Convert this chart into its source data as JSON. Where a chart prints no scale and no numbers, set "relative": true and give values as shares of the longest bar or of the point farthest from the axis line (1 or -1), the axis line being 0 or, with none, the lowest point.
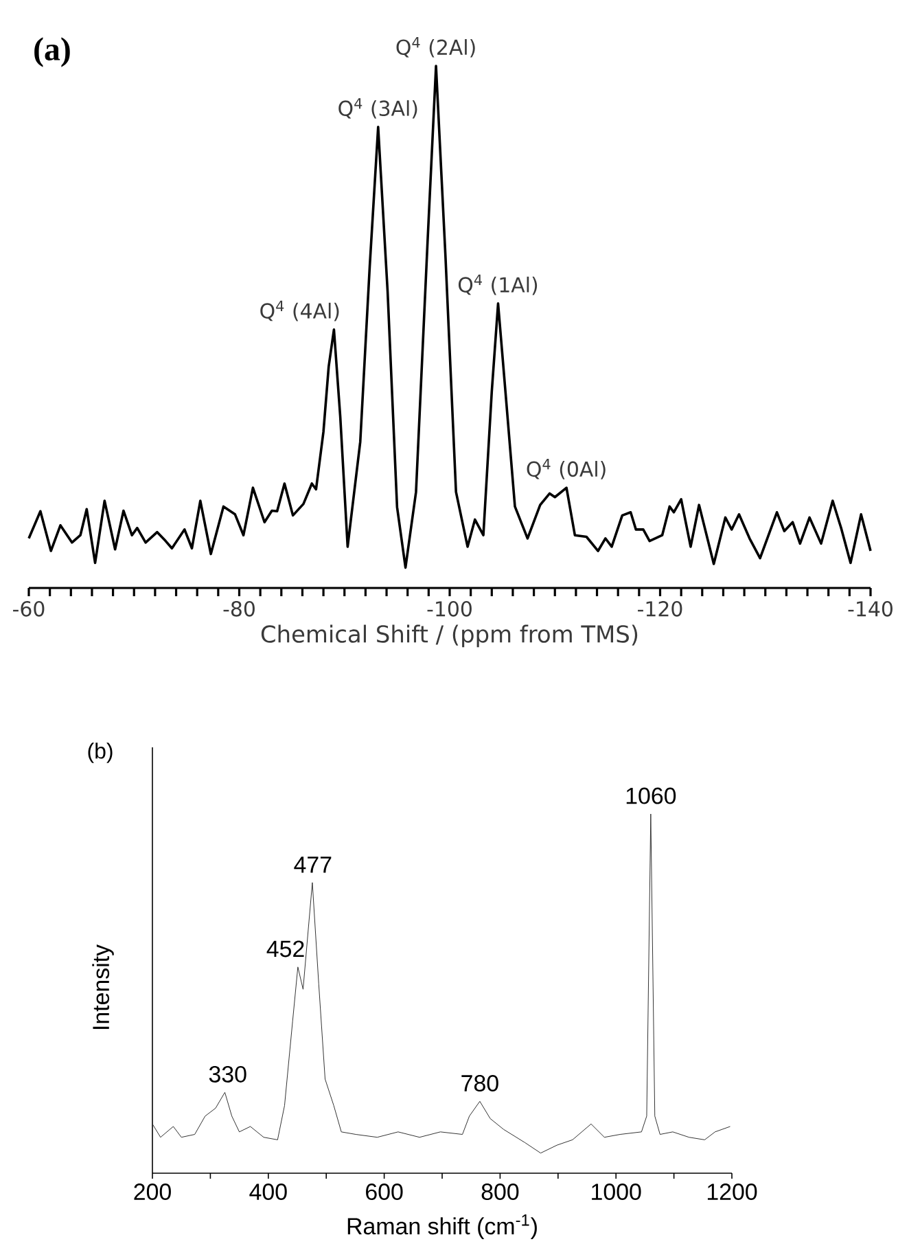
{
  "chart_data": [
    {
      "type": "line",
      "title": "(a)",
      "xlabel": "Chemical Shift / (ppm from TMS)",
      "color": "#000000",
      "relative": true,
      "tick_labels": "x",
      "xlim": [
        -60,
        -140
      ],
      "xticks": [
        -60,
        -80,
        -100,
        -120,
        -140,
        {
          "value": -62,
          "label": null
        },
        {
          "value": -64,
          "label": null
        },
        {
          "value": -66,
          "label": null
        },
        {
          "value": -68,
          "label": null
        },
        {
          "value": -70,
          "label": null
        },
        {
          "value": -72,
          "label": null
        },
        {
          "value": -74,
          "label": null
        },
        {
          "value": -76,
          "label": null
        },
        {
          "value": -78,
          "label": null
        },
        {
          "value": -82,
          "label": null
        },
        {
          "value": -84,
          "label": null
        },
        {
          "value": -86,
          "label": null
        },
        {
          "value": -88,
          "label": null
        },
        {
          "value": -90,
          "label": null
        },
        {
          "value": -92,
          "label": null
        },
        {
          "value": -94,
          "label": null
        },
        {
          "value": -96,
          "label": null
        },
        {
          "value": -98,
          "label": null
        },
        {
          "value": -102,
          "label": null
        },
        {
          "value": -104,
          "label": null
        },
        {
          "value": -106,
          "label": null
        },
        {
          "value": -108,
          "label": null
        },
        {
          "value": -110,
          "label": null
        },
        {
          "value": -112,
          "label": null
        },
        {
          "value": -114,
          "label": null
        },
        {
          "value": -116,
          "label": null
        },
        {
          "value": -118,
          "label": null
        },
        {
          "value": -122,
          "label": null
        },
        {
          "value": -124,
          "label": null
        },
        {
          "value": -126,
          "label": null
        },
        {
          "value": -128,
          "label": null
        },
        {
          "value": -130,
          "label": null
        },
        {
          "value": -132,
          "label": null
        },
        {
          "value": -134,
          "label": null
        },
        {
          "value": -136,
          "label": null
        },
        {
          "value": -138,
          "label": null
        }
      ],
      "x": [
        -60.0,
        -61.1,
        -62.1,
        -63.0,
        -64.1,
        -64.9,
        -65.5,
        -66.3,
        -67.2,
        -68.2,
        -69.0,
        -69.8,
        -70.3,
        -71.1,
        -72.2,
        -73.0,
        -73.6,
        -74.8,
        -75.5,
        -76.3,
        -77.3,
        -78.5,
        -79.6,
        -80.4,
        -81.3,
        -82.4,
        -83.1,
        -83.6,
        -84.3,
        -85.1,
        -86.1,
        -86.9,
        -87.3,
        -88.0,
        -88.5,
        -89.0,
        -89.6,
        -90.3,
        -91.5,
        -92.4,
        -93.2,
        -94.1,
        -95.0,
        -95.8,
        -96.8,
        -97.9,
        -98.7,
        -99.6,
        -100.6,
        -101.7,
        -102.4,
        -103.2,
        -104.0,
        -104.6,
        -105.3,
        -106.2,
        -107.4,
        -108.6,
        -109.5,
        -110.0,
        -111.1,
        -111.9,
        -113.0,
        -114.1,
        -114.8,
        -115.4,
        -116.4,
        -117.2,
        -117.7,
        -118.4,
        -119.0,
        -120.2,
        -120.9,
        -121.3,
        -122.0,
        -122.9,
        -123.7,
        -125.1,
        -126.2,
        -126.8,
        -127.5,
        -128.5,
        -129.5,
        -131.1,
        -131.8,
        -132.6,
        -133.3,
        -134.2,
        -135.3,
        -136.4,
        -137.2,
        -138.1,
        -139.1,
        -140.0
      ],
      "values": [
        0.095,
        0.147,
        0.071,
        0.12,
        0.087,
        0.101,
        0.151,
        0.048,
        0.167,
        0.074,
        0.148,
        0.101,
        0.115,
        0.087,
        0.107,
        0.09,
        0.076,
        0.112,
        0.076,
        0.167,
        0.065,
        0.156,
        0.141,
        0.101,
        0.192,
        0.126,
        0.148,
        0.147,
        0.2,
        0.139,
        0.161,
        0.2,
        0.189,
        0.299,
        0.424,
        0.495,
        0.328,
        0.079,
        0.28,
        0.616,
        0.883,
        0.568,
        0.155,
        0.039,
        0.184,
        0.664,
        1.0,
        0.635,
        0.184,
        0.079,
        0.131,
        0.101,
        0.376,
        0.545,
        0.376,
        0.156,
        0.095,
        0.159,
        0.181,
        0.174,
        0.192,
        0.101,
        0.098,
        0.071,
        0.095,
        0.079,
        0.139,
        0.145,
        0.112,
        0.112,
        0.09,
        0.101,
        0.156,
        0.145,
        0.17,
        0.079,
        0.159,
        0.046,
        0.135,
        0.112,
        0.141,
        0.095,
        0.057,
        0.145,
        0.109,
        0.126,
        0.085,
        0.135,
        0.085,
        0.167,
        0.115,
        0.048,
        0.141,
        0.071
      ],
      "annotations": [
        {
          "text": "Q$^{4}$ (4Al)",
          "x": -89.0,
          "y": 0.495
        },
        {
          "text": "Q$^{4}$ (3Al)",
          "x": -93.2,
          "y": 0.883
        },
        {
          "text": "Q$^{4}$ (2Al)",
          "x": -98.7,
          "y": 1.0
        },
        {
          "text": "Q$^{4}$ (1Al)",
          "x": -104.6,
          "y": 0.545
        },
        {
          "text": "Q$^{4}$ (0Al)",
          "x": -111.1,
          "y": 0.192
        }
      ]
    },
    {
      "type": "line",
      "title": "(b)",
      "xlabel": "Raman shift (cm$^{-1}$)",
      "ylabel": "Intensity",
      "color": "#333333",
      "relative": true,
      "tick_labels": "x",
      "xlim": [
        200,
        1200
      ],
      "xticks": [
        200,
        400,
        600,
        800,
        1000,
        1200,
        {
          "value": 300,
          "label": null
        },
        {
          "value": 500,
          "label": null
        },
        {
          "value": 700,
          "label": null
        },
        {
          "value": 900,
          "label": null
        },
        {
          "value": 1100,
          "label": null
        }
      ],
      "x": [
        200,
        214,
        236,
        250,
        273,
        291,
        309,
        325,
        337,
        350,
        369,
        392,
        416,
        428,
        442,
        451,
        460,
        476,
        487,
        498,
        513,
        526,
        551,
        588,
        624,
        661,
        697,
        735,
        747,
        765,
        783,
        806,
        843,
        870,
        898,
        925,
        957,
        980,
        1007,
        1044,
        1053,
        1060,
        1067,
        1076,
        1098,
        1126,
        1153,
        1171,
        1197
      ],
      "values": [
        0.137,
        0.1,
        0.13,
        0.1,
        0.108,
        0.159,
        0.181,
        0.225,
        0.159,
        0.115,
        0.13,
        0.1,
        0.093,
        0.188,
        0.424,
        0.574,
        0.512,
        0.809,
        0.527,
        0.262,
        0.188,
        0.115,
        0.108,
        0.1,
        0.115,
        0.1,
        0.115,
        0.108,
        0.159,
        0.2,
        0.152,
        0.122,
        0.085,
        0.056,
        0.078,
        0.093,
        0.137,
        0.1,
        0.108,
        0.115,
        0.159,
        1.0,
        0.159,
        0.108,
        0.115,
        0.1,
        0.093,
        0.115,
        0.13
      ],
      "annotations": [
        {
          "text": "330",
          "x": 330,
          "y": 0.225
        },
        {
          "text": "452",
          "x": 452,
          "y": 0.574
        },
        {
          "text": "477",
          "x": 477,
          "y": 0.809
        },
        {
          "text": "780",
          "x": 765,
          "y": 0.2
        },
        {
          "text": "1060",
          "x": 1060,
          "y": 1.0
        }
      ]
    }
  ]
}
